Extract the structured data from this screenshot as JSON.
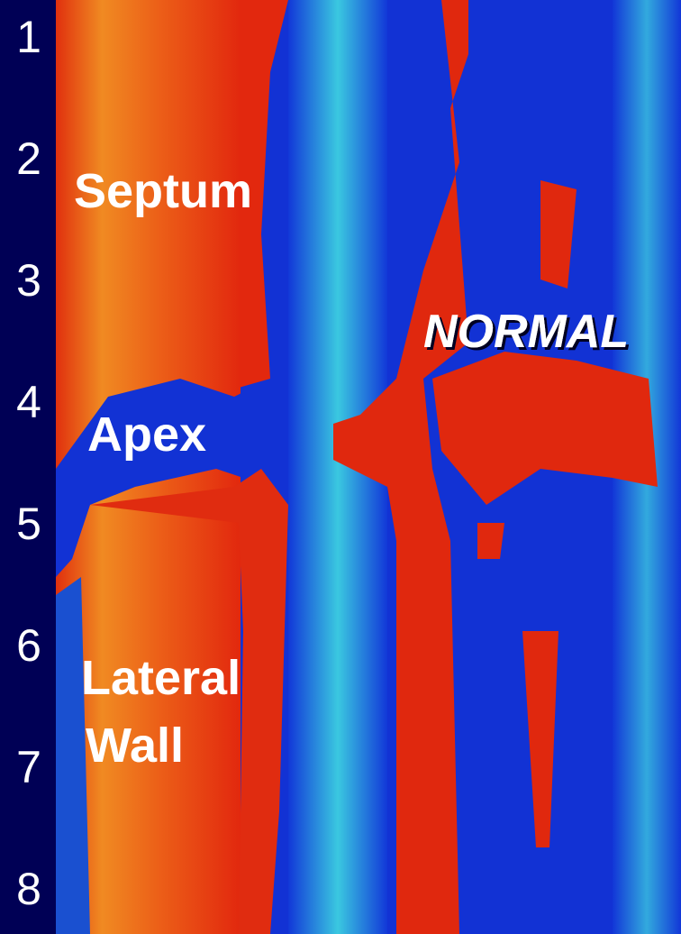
{
  "row_labels": [
    "1",
    "2",
    "3",
    "4",
    "5",
    "6",
    "7",
    "8"
  ],
  "annotations": {
    "septum": "Septum",
    "apex": "Apex",
    "lateral_wall": [
      "Lateral",
      "Wall"
    ],
    "status": "NORMAL"
  }
}
